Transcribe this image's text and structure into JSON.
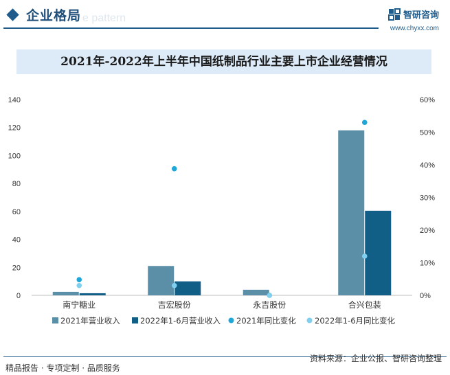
{
  "header": {
    "title": "企业格局",
    "watermark": "e pattern",
    "brand_name": "智研咨询",
    "brand_url": "www.chyxx.com",
    "accent_color": "#1f5c8b"
  },
  "chart_data": {
    "type": "bar",
    "title": "2021年-2022年上半年中国纸制品行业主要上市企业经营情况",
    "categories": [
      "南宁糖业",
      "吉宏股份",
      "永吉股份",
      "合兴包装"
    ],
    "series": [
      {
        "name": "2021年营业收入",
        "kind": "bar",
        "axis": "left",
        "color": "#5b8fa8",
        "values": [
          2.5,
          21,
          4,
          118
        ]
      },
      {
        "name": "2022年1-6月营业收入",
        "kind": "bar",
        "axis": "left",
        "color": "#115f86",
        "values": [
          1.5,
          10,
          0,
          60.5
        ]
      },
      {
        "name": "2021年同比变化",
        "kind": "scatter",
        "axis": "right",
        "color": "#1fa7d9",
        "values": [
          4.8,
          38.8,
          0,
          53
        ]
      },
      {
        "name": "2022年1-6月同比变化",
        "kind": "scatter",
        "axis": "right",
        "color": "#7fd0ee",
        "values": [
          3,
          3,
          0,
          12
        ]
      }
    ],
    "y_left": {
      "min": 0,
      "max": 140,
      "ticks": [
        "0",
        "20",
        "40",
        "60",
        "80",
        "100",
        "120",
        "140"
      ]
    },
    "y_right": {
      "min": 0,
      "max": 60,
      "ticks": [
        "0%",
        "10%",
        "20%",
        "30%",
        "40%",
        "50%",
        "60%"
      ]
    },
    "legend_position": "bottom",
    "grid": false
  },
  "footer": {
    "left_text": "精品报告 · 专项定制 · 品质服务",
    "right_text": "资料来源：企业公报、智研咨询整理"
  }
}
